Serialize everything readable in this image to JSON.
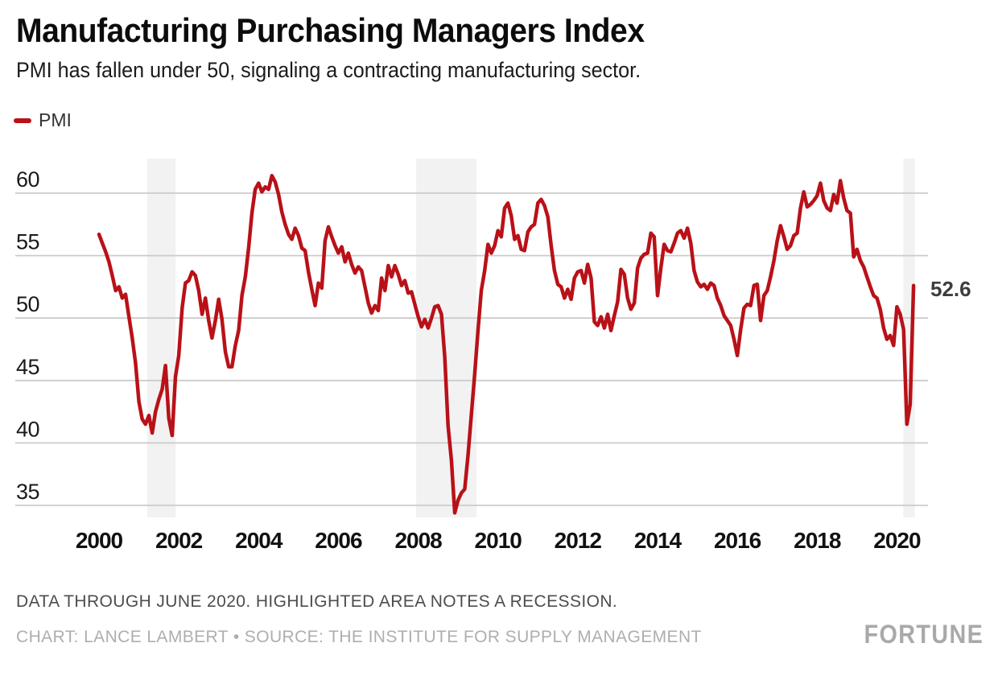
{
  "header": {
    "title": "Manufacturing Purchasing Managers Index",
    "subtitle": "PMI has fallen under 50, signaling a contracting manufacturing sector."
  },
  "legend": {
    "label": "PMI"
  },
  "annotation": {
    "last_value": "52.6"
  },
  "footer": {
    "note": "DATA THROUGH JUNE 2020. HIGHLIGHTED AREA NOTES A RECESSION.",
    "credit": "CHART: LANCE LAMBERT • SOURCE: THE INSTITUTE FOR SUPPLY MANAGEMENT"
  },
  "brand": {
    "logo": "FORTUNE"
  },
  "chart_data": {
    "type": "line",
    "title": "Manufacturing Purchasing Managers Index",
    "xlabel": "",
    "ylabel": "",
    "x_unit": "month",
    "x_start": "2000-01",
    "x_end": "2020-06",
    "xticks": [
      2000,
      2002,
      2004,
      2006,
      2008,
      2010,
      2012,
      2014,
      2016,
      2018,
      2020
    ],
    "yticks": [
      60,
      55,
      50,
      45,
      40,
      35
    ],
    "ylim": [
      33.5,
      62.5
    ],
    "xlim": [
      1999.9,
      2020.8
    ],
    "grid": "horizontal",
    "legend_position": "top-left",
    "line_color": "#b91118",
    "band_color": "#f2f2f2",
    "grid_color": "#cbcbcb",
    "recession_bands_years": [
      [
        2001.21,
        2001.92
      ],
      [
        2007.95,
        2009.46
      ],
      [
        2020.16,
        2020.45
      ]
    ],
    "series": [
      {
        "name": "PMI",
        "values": [
          56.7,
          56.0,
          55.3,
          54.5,
          53.4,
          52.2,
          52.5,
          51.6,
          51.9,
          50.1,
          48.4,
          46.4,
          43.3,
          41.9,
          41.5,
          42.2,
          40.8,
          42.5,
          43.5,
          44.3,
          46.2,
          42.0,
          40.6,
          45.3,
          47.0,
          50.8,
          52.8,
          53.0,
          53.7,
          53.4,
          52.2,
          50.3,
          51.6,
          49.8,
          48.4,
          49.8,
          51.5,
          49.9,
          47.3,
          46.1,
          46.1,
          47.8,
          49.0,
          51.8,
          53.3,
          55.6,
          58.4,
          60.3,
          60.8,
          60.1,
          60.5,
          60.3,
          61.4,
          60.9,
          59.9,
          58.5,
          57.5,
          56.7,
          56.3,
          57.2,
          56.6,
          55.6,
          55.4,
          53.7,
          52.3,
          51.0,
          52.8,
          52.4,
          56.2,
          57.3,
          56.5,
          55.8,
          55.2,
          55.7,
          54.5,
          55.2,
          54.3,
          53.6,
          54.1,
          53.8,
          52.5,
          51.2,
          50.4,
          51.0,
          50.6,
          53.2,
          52.2,
          54.2,
          53.3,
          54.2,
          53.5,
          52.6,
          53.0,
          52.0,
          52.1,
          51.1,
          50.1,
          49.3,
          49.9,
          49.2,
          50.0,
          50.9,
          51.0,
          50.3,
          46.9,
          41.4,
          38.6,
          34.4,
          35.4,
          36.0,
          36.3,
          39.0,
          42.3,
          45.5,
          49.0,
          52.2,
          53.8,
          55.9,
          55.2,
          55.8,
          57.0,
          56.5,
          58.8,
          59.2,
          58.2,
          56.3,
          56.6,
          55.5,
          55.4,
          56.9,
          57.3,
          57.5,
          59.2,
          59.5,
          59.0,
          58.1,
          55.8,
          53.8,
          52.7,
          52.5,
          51.6,
          52.3,
          51.5,
          53.2,
          53.7,
          53.8,
          52.8,
          54.3,
          53.2,
          49.7,
          49.4,
          50.1,
          49.2,
          50.3,
          49.0,
          50.2,
          51.3,
          53.9,
          53.5,
          51.6,
          50.7,
          51.2,
          54.0,
          54.8,
          55.1,
          55.2,
          56.8,
          56.5,
          51.8,
          54.0,
          55.9,
          55.4,
          55.3,
          56.0,
          56.8,
          57.0,
          56.4,
          57.2,
          56.0,
          53.8,
          52.9,
          52.5,
          52.7,
          52.3,
          52.8,
          52.6,
          51.6,
          51.0,
          50.2,
          49.8,
          49.4,
          48.3,
          47.0,
          49.1,
          50.8,
          51.1,
          51.0,
          52.6,
          52.7,
          49.8,
          51.8,
          52.2,
          53.3,
          54.6,
          56.2,
          57.4,
          56.5,
          55.5,
          55.8,
          56.6,
          56.8,
          58.8,
          60.1,
          58.9,
          59.1,
          59.4,
          59.8,
          60.8,
          59.4,
          58.8,
          58.6,
          59.9,
          59.2,
          61.0,
          59.6,
          58.6,
          58.4,
          54.9,
          55.5,
          54.6,
          54.1,
          53.3,
          52.5,
          51.8,
          51.6,
          50.7,
          49.2,
          48.3,
          48.6,
          47.8,
          50.9,
          50.3,
          49.1,
          41.5,
          43.1,
          52.6
        ]
      }
    ],
    "annotations": [
      {
        "x": "2020-06",
        "y": 52.6,
        "text": "52.6"
      }
    ]
  }
}
